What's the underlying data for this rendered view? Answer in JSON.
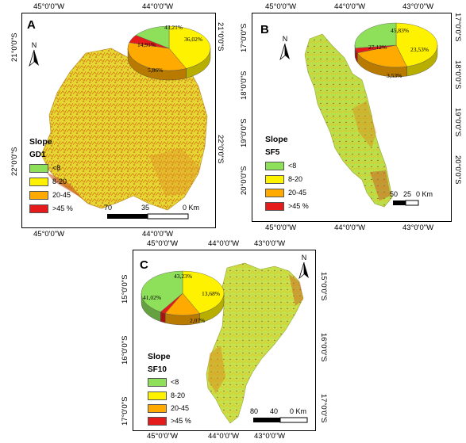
{
  "colors": {
    "lt8": "#8ee05a",
    "r8_20": "#fff200",
    "r20_45": "#ffaa00",
    "gt45": "#e51b1b"
  },
  "panels": {
    "a": {
      "letter": "A",
      "region": "GD1",
      "coords": {
        "top": [
          "45°0'0\"W",
          "44°0'0\"W"
        ],
        "bottom": [
          "45°0'0\"W",
          "44°0'0\"W"
        ],
        "left": [
          "21°0'0\"S",
          "22°0'0\"S"
        ],
        "right": [
          "21°0'0\"S",
          "22°0'0\"S"
        ]
      },
      "pie": {
        "lt8": 14.91,
        "r8_20": 43.21,
        "r20_45": 36.02,
        "gt45": 5.86
      },
      "pie_labels": {
        "lt8": "14,91%",
        "r8_20": "43,21%",
        "r20_45": "36,02%",
        "gt45": "5,86%"
      },
      "scale": [
        "70",
        "35",
        "0 Km"
      ]
    },
    "b": {
      "letter": "B",
      "region": "SF5",
      "coords": {
        "top": [
          "45°0'0\"W",
          "44°0'0\"W",
          "43°0'0\"W"
        ],
        "bottom": [
          "45°0'0\"W",
          "44°0'0\"W",
          "43°0'0\"W"
        ],
        "left": [
          "17°0'0\"S",
          "18°0'0\"S",
          "19°0'0\"S",
          "20°0'0\"S"
        ],
        "right": [
          "17°0'0\"S",
          "18°0'0\"S",
          "19°0'0\"S",
          "20°0'0\"S"
        ]
      },
      "pie": {
        "lt8": 27.12,
        "r8_20": 45.83,
        "r20_45": 23.53,
        "gt45": 3.53
      },
      "pie_labels": {
        "lt8": "27,12%",
        "r8_20": "45,83%",
        "r20_45": "23,53%",
        "gt45": "3,53%"
      },
      "scale": [
        "50",
        "25",
        "0 Km"
      ]
    },
    "c": {
      "letter": "C",
      "region": "SF10",
      "coords": {
        "top": [
          "45°0'0\"W",
          "44°0'0\"W",
          "43°0'0\"W"
        ],
        "bottom": [
          "45°0'0\"W",
          "44°0'0\"W",
          "43°0'0\"W"
        ],
        "left": [
          "15°0'0\"S",
          "16°0'0\"S",
          "17°0'0\"S"
        ],
        "right": [
          "15°0'0\"S",
          "16°0'0\"S",
          "17°0'0\"S"
        ]
      },
      "pie": {
        "lt8": 41.02,
        "r8_20": 43.23,
        "r20_45": 13.68,
        "gt45": 2.07
      },
      "pie_labels": {
        "lt8": "41,02%",
        "r8_20": "43,23%",
        "r20_45": "13,68%",
        "gt45": "2,07%"
      },
      "scale": [
        "80",
        "40",
        "0 Km"
      ]
    }
  },
  "legend": {
    "title": "Slope",
    "items": [
      "<8",
      "8-20",
      "20-45",
      ">45 %"
    ]
  },
  "north_label": "N"
}
